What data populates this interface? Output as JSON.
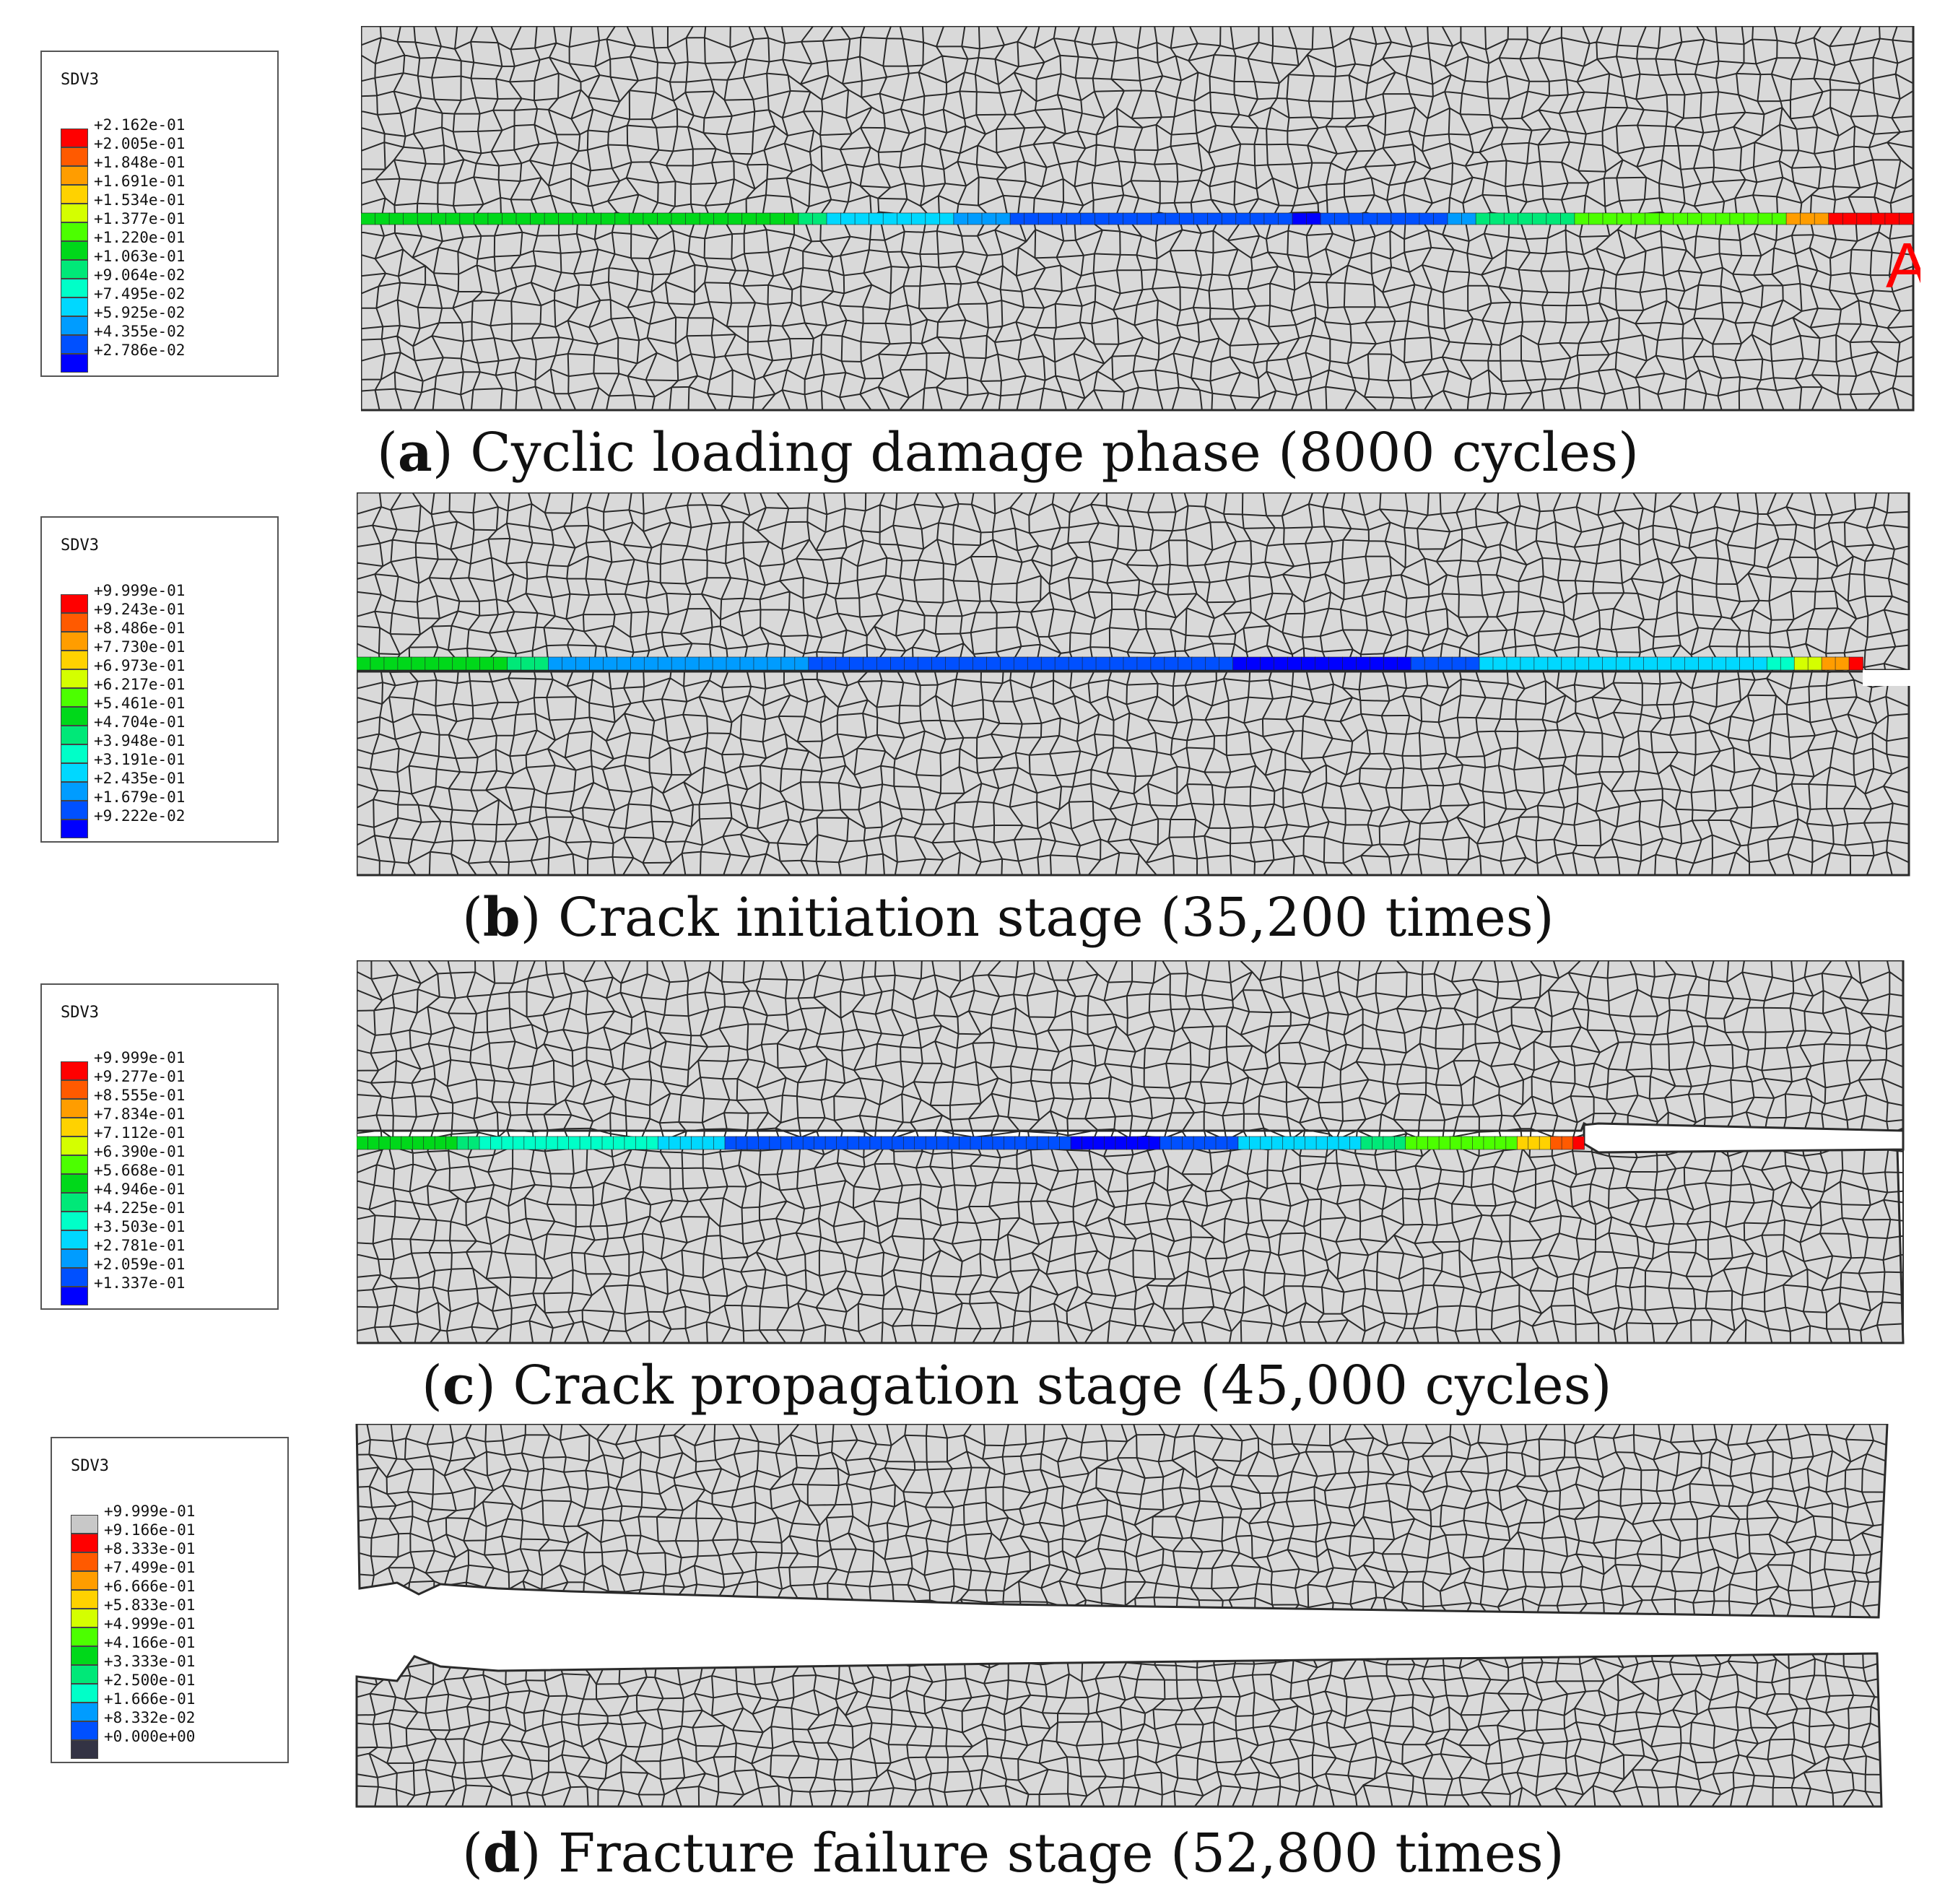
{
  "panels": [
    {
      "legend_title": "SDV3",
      "legend_values": [
        "+2.162e-01",
        "+2.005e-01",
        "+1.848e-01",
        "+1.691e-01",
        "+1.534e-01",
        "+1.377e-01",
        "+1.220e-01",
        "+1.063e-01",
        "+9.064e-02",
        "+7.495e-02",
        "+5.925e-02",
        "+4.355e-02",
        "+2.786e-02"
      ],
      "legend_colors": [
        "#ff0000",
        "#ff5a00",
        "#ff9d00",
        "#ffd200",
        "#d4ff00",
        "#4cff00",
        "#00d81a",
        "#00e878",
        "#00ffc8",
        "#00d8ff",
        "#009cff",
        "#0050ff",
        "#0000ff"
      ],
      "caption_letter": "a",
      "caption_text": "Cyclic loading damage phase (8000 cycles)",
      "marker_label": "A"
    },
    {
      "legend_title": "SDV3",
      "legend_values": [
        "+9.999e-01",
        "+9.243e-01",
        "+8.486e-01",
        "+7.730e-01",
        "+6.973e-01",
        "+6.217e-01",
        "+5.461e-01",
        "+4.704e-01",
        "+3.948e-01",
        "+3.191e-01",
        "+2.435e-01",
        "+1.679e-01",
        "+9.222e-02"
      ],
      "legend_colors": [
        "#ff0000",
        "#ff5a00",
        "#ff9d00",
        "#ffd200",
        "#d4ff00",
        "#4cff00",
        "#00d81a",
        "#00e878",
        "#00ffc8",
        "#00d8ff",
        "#009cff",
        "#0050ff",
        "#0000ff"
      ],
      "caption_letter": "b",
      "caption_text": "Crack initiation stage (35,200 times)"
    },
    {
      "legend_title": "SDV3",
      "legend_values": [
        "+9.999e-01",
        "+9.277e-01",
        "+8.555e-01",
        "+7.834e-01",
        "+7.112e-01",
        "+6.390e-01",
        "+5.668e-01",
        "+4.946e-01",
        "+4.225e-01",
        "+3.503e-01",
        "+2.781e-01",
        "+2.059e-01",
        "+1.337e-01"
      ],
      "legend_colors": [
        "#ff0000",
        "#ff5a00",
        "#ff9d00",
        "#ffd200",
        "#d4ff00",
        "#4cff00",
        "#00d81a",
        "#00e878",
        "#00ffc8",
        "#00d8ff",
        "#009cff",
        "#0050ff",
        "#0000ff"
      ],
      "caption_letter": "c",
      "caption_text": "Crack propagation stage (45,000 cycles)"
    },
    {
      "legend_title": "SDV3",
      "legend_values": [
        "+9.999e-01",
        "+9.166e-01",
        "+8.333e-01",
        "+7.499e-01",
        "+6.666e-01",
        "+5.833e-01",
        "+4.999e-01",
        "+4.166e-01",
        "+3.333e-01",
        "+2.500e-01",
        "+1.666e-01",
        "+8.332e-02",
        "+0.000e+00"
      ],
      "legend_colors": [
        "#c8c8c8",
        "#ff0000",
        "#ff5a00",
        "#ff9d00",
        "#ffd200",
        "#d4ff00",
        "#4cff00",
        "#00d81a",
        "#00e878",
        "#00ffc8",
        "#009cff",
        "#0050ff",
        "#333344"
      ],
      "caption_letter": "d",
      "caption_text": "Fracture failure stage (52,800 times)"
    }
  ],
  "colors": {
    "mesh_fill": "#d9d9d9",
    "mesh_line": "#2a2a2a",
    "marker": "#ff0000"
  }
}
